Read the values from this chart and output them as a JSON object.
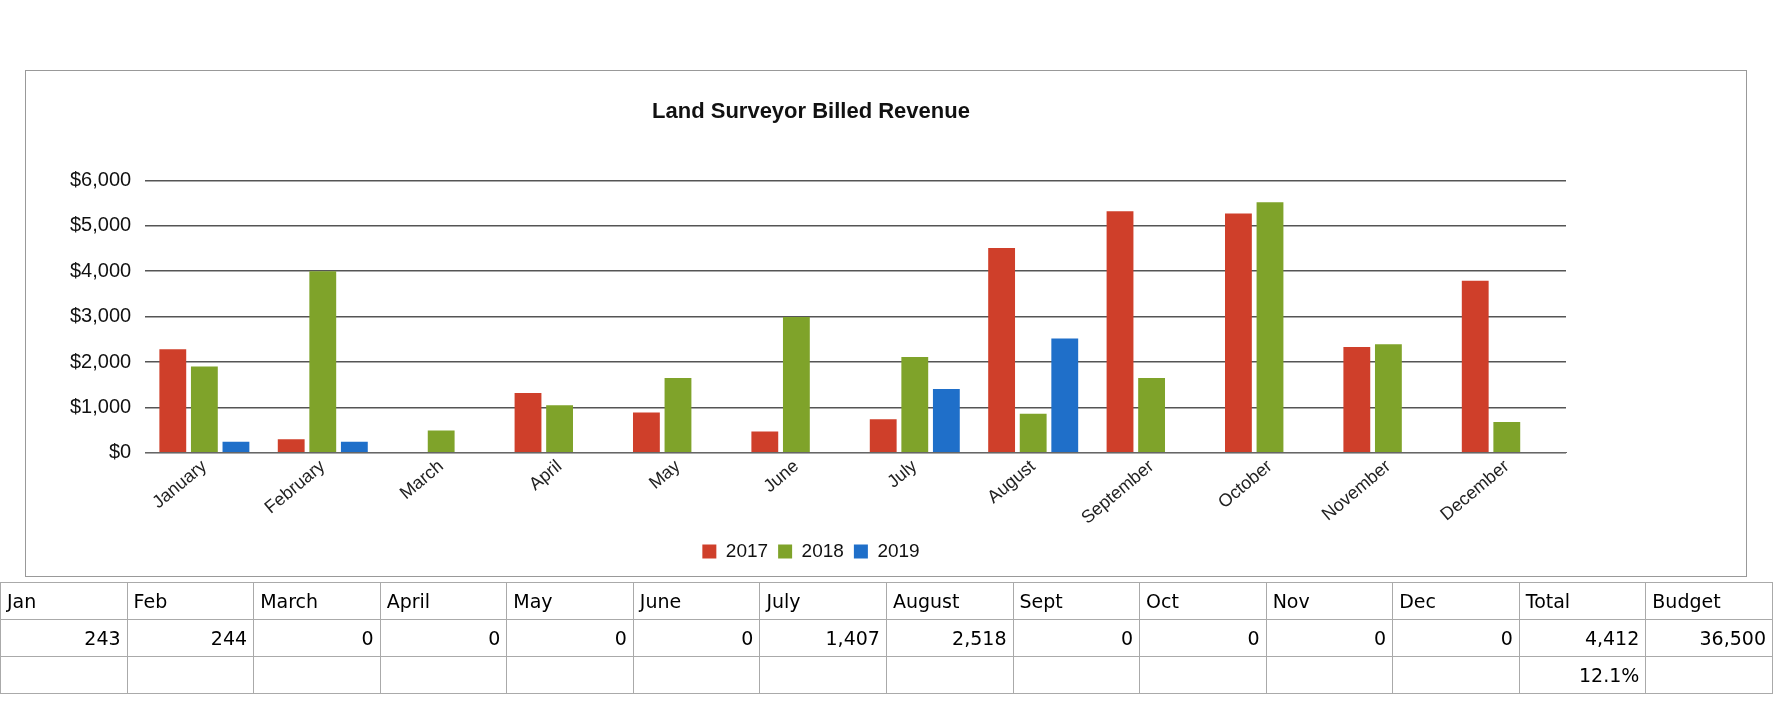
{
  "chart_data": {
    "type": "bar",
    "title": "Land Surveyor Billed Revenue",
    "categories": [
      "January",
      "February",
      "March",
      "April",
      "May",
      "June",
      "July",
      "August",
      "September",
      "October",
      "November",
      "December"
    ],
    "series": [
      {
        "name": "2017",
        "color": "#cf3f2a",
        "values": [
          2280,
          300,
          null,
          1320,
          890,
          470,
          740,
          4510,
          5320,
          5270,
          2330,
          3790
        ]
      },
      {
        "name": "2018",
        "color": "#7fa32a",
        "values": [
          1900,
          4000,
          490,
          1050,
          1650,
          2990,
          2110,
          860,
          1650,
          5520,
          2390,
          680
        ]
      },
      {
        "name": "2019",
        "color": "#1f6fc9",
        "values": [
          243,
          244,
          0,
          0,
          0,
          0,
          1407,
          2518,
          0,
          0,
          0,
          0
        ]
      }
    ],
    "ylim": [
      0,
      6000
    ],
    "yticks": [
      {
        "value": 0,
        "label": "$0"
      },
      {
        "value": 1000,
        "label": "$1,000"
      },
      {
        "value": 2000,
        "label": "$2,000"
      },
      {
        "value": 3000,
        "label": "$3,000"
      },
      {
        "value": 4000,
        "label": "$4,000"
      },
      {
        "value": 5000,
        "label": "$5,000"
      },
      {
        "value": 6000,
        "label": "$6,000"
      }
    ],
    "grid": "y",
    "legend": "bottom",
    "annotations": [
      "Jan",
      "Feb",
      "March",
      "April",
      "May",
      "June",
      "July",
      "August",
      "Sept",
      "Oct",
      "Nov",
      "Dec",
      "Total",
      "Budget",
      "243",
      "244",
      "0",
      "0",
      "0",
      "0",
      "1,407",
      "2,518",
      "0",
      "0",
      "0",
      "0",
      "4,412",
      "36,500",
      "12.1%"
    ]
  }
}
